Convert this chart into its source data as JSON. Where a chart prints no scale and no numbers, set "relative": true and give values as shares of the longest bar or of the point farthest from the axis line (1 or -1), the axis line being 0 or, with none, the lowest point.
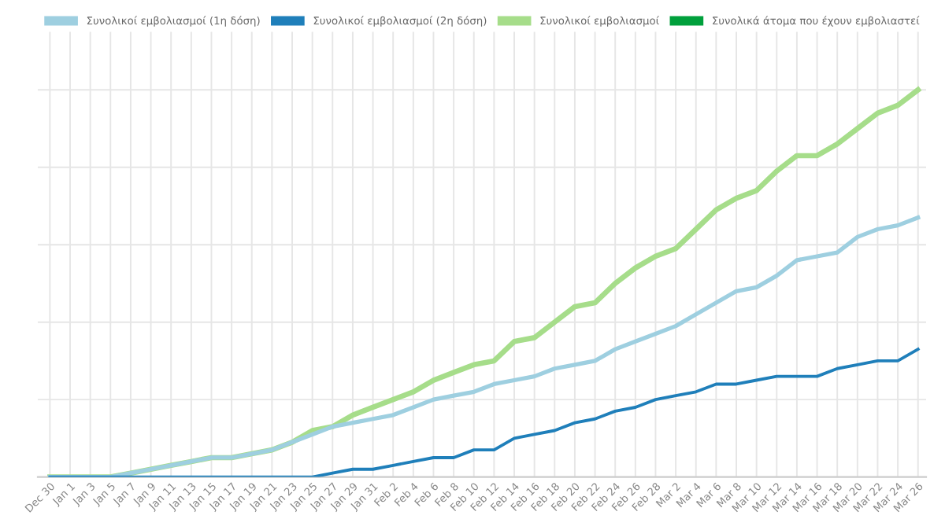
{
  "chart_data": {
    "type": "line",
    "relative": true,
    "grid": true,
    "legend": "top",
    "marker": "none",
    "line_style": "solid",
    "categories": [
      "Dec 30",
      "Jan 1",
      "Jan 3",
      "Jan 5",
      "Jan 7",
      "Jan 9",
      "Jan 11",
      "Jan 13",
      "Jan 15",
      "Jan 17",
      "Jan 19",
      "Jan 21",
      "Jan 23",
      "Jan 25",
      "Jan 27",
      "Jan 29",
      "Jan 31",
      "Feb 2",
      "Feb 4",
      "Feb 6",
      "Feb 8",
      "Feb 10",
      "Feb 12",
      "Feb 14",
      "Feb 16",
      "Feb 18",
      "Feb 20",
      "Feb 22",
      "Feb 24",
      "Feb 26",
      "Feb 28",
      "Mar 2",
      "Mar 4",
      "Mar 6",
      "Mar 8",
      "Mar 10",
      "Mar 12",
      "Mar 14",
      "Mar 16",
      "Mar 18",
      "Mar 20",
      "Mar 22",
      "Mar 24",
      "Mar 26"
    ],
    "series": [
      {
        "name": "Συνολικοί εμβολιασμοί (1η δόση)",
        "color": "#9ecfe0",
        "values": [
          0,
          0,
          0,
          0,
          0.01,
          0.02,
          0.03,
          0.04,
          0.05,
          0.05,
          0.06,
          0.07,
          0.09,
          0.11,
          0.13,
          0.14,
          0.15,
          0.16,
          0.18,
          0.2,
          0.21,
          0.22,
          0.24,
          0.25,
          0.26,
          0.28,
          0.29,
          0.3,
          0.33,
          0.35,
          0.37,
          0.39,
          0.42,
          0.45,
          0.48,
          0.49,
          0.52,
          0.56,
          0.57,
          0.58,
          0.62,
          0.64,
          0.65,
          0.67
        ]
      },
      {
        "name": "Συνολικοί εμβολιασμοί (2η δόση)",
        "color": "#1f7fba",
        "values": [
          0,
          0,
          0,
          0,
          0,
          0,
          0,
          0,
          0,
          0,
          0,
          0,
          0,
          0,
          0.01,
          0.02,
          0.02,
          0.03,
          0.04,
          0.05,
          0.05,
          0.07,
          0.07,
          0.1,
          0.11,
          0.12,
          0.14,
          0.15,
          0.17,
          0.18,
          0.2,
          0.21,
          0.22,
          0.24,
          0.24,
          0.25,
          0.26,
          0.26,
          0.26,
          0.28,
          0.29,
          0.3,
          0.3,
          0.33
        ]
      },
      {
        "name": "Συνολικοί εμβολιασμοί",
        "color": "#a6dd8a",
        "values": [
          0,
          0,
          0,
          0,
          0.01,
          0.02,
          0.03,
          0.04,
          0.05,
          0.05,
          0.06,
          0.07,
          0.09,
          0.12,
          0.13,
          0.16,
          0.18,
          0.2,
          0.22,
          0.25,
          0.27,
          0.29,
          0.3,
          0.35,
          0.36,
          0.4,
          0.44,
          0.45,
          0.5,
          0.54,
          0.57,
          0.59,
          0.64,
          0.69,
          0.72,
          0.74,
          0.79,
          0.83,
          0.83,
          0.86,
          0.9,
          0.94,
          0.96,
          1
        ]
      },
      {
        "name": "Συνολικά άτομα που έχουν εμβολιαστεί",
        "color": "#00a03c",
        "values": [
          null,
          null,
          null,
          null,
          null,
          null,
          null,
          null,
          null,
          null,
          null,
          null,
          null,
          null,
          null,
          null,
          null,
          null,
          null,
          null,
          null,
          null,
          null,
          null,
          null,
          null,
          null,
          null,
          null,
          null,
          null,
          null,
          null,
          null,
          null,
          null,
          null,
          null,
          null,
          null,
          null,
          null,
          null,
          null
        ]
      }
    ]
  }
}
